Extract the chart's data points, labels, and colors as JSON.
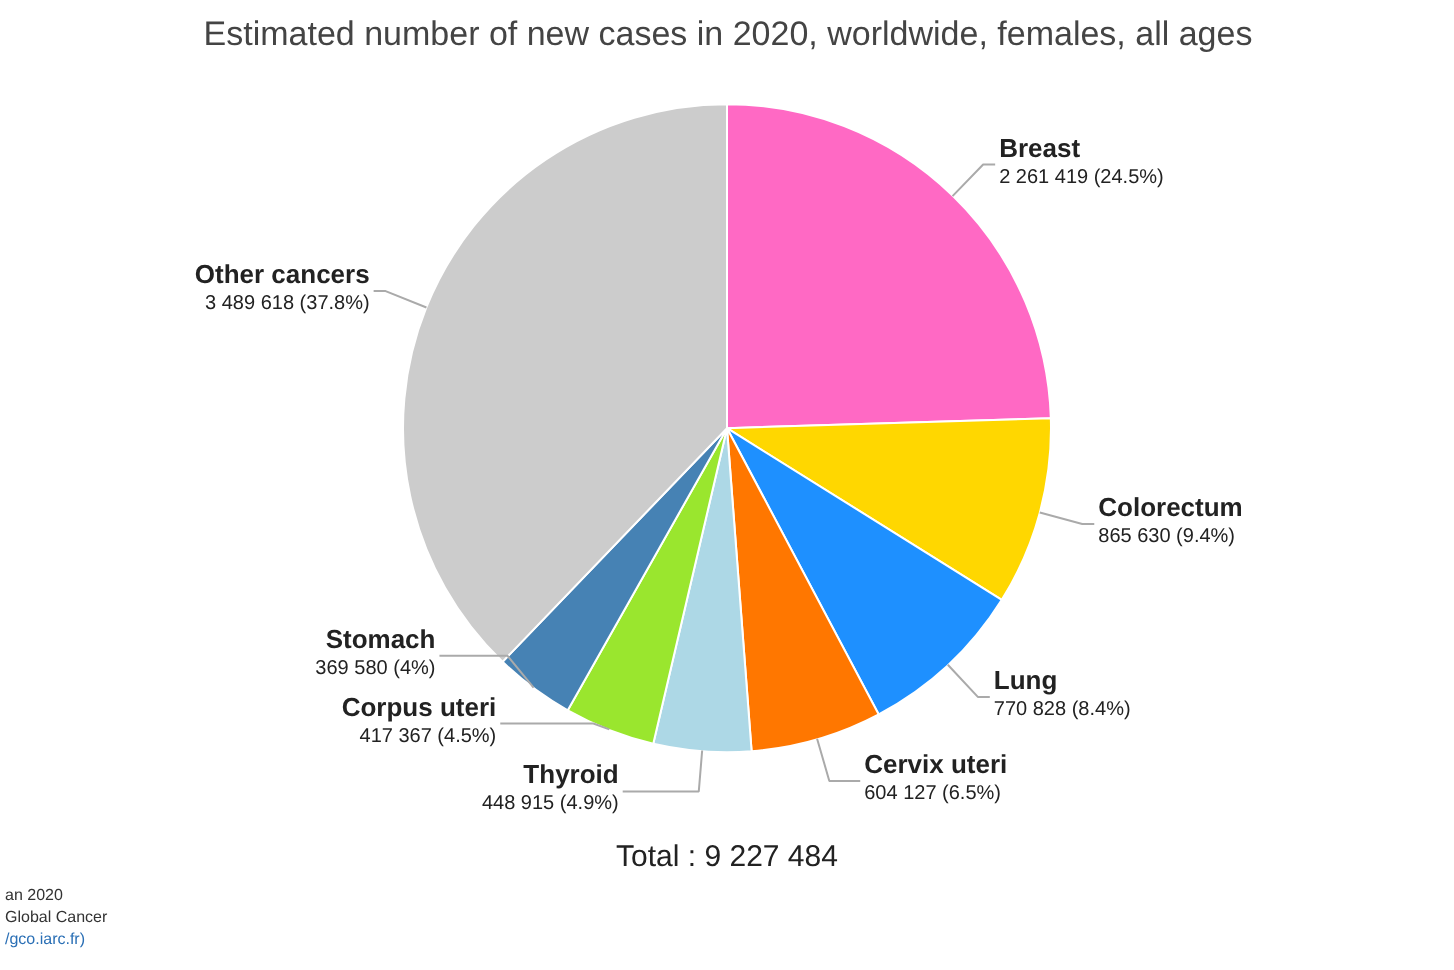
{
  "chart_data": {
    "type": "pie",
    "title": "Estimated number of new cases in 2020, worldwide, females, all ages",
    "categories": [
      "Breast",
      "Colorectum",
      "Lung",
      "Cervix uteri",
      "Thyroid",
      "Corpus uteri",
      "Stomach",
      "Other cancers"
    ],
    "values": [
      2261419,
      865630,
      770828,
      604127,
      448915,
      417367,
      369580,
      3489618
    ],
    "colors": [
      "#ff69c4",
      "#ffd700",
      "#1e90ff",
      "#ff7700",
      "#add8e6",
      "#9ae62e",
      "#4682b4",
      "#cccccc"
    ],
    "value_labels": [
      "2 261 419 (24.5%)",
      "865 630 (9.4%)",
      "770 828 (8.4%)",
      "604 127 (6.5%)",
      "448 915 (4.9%)",
      "417 367 (4.5%)",
      "369 580 (4%)",
      "3 489 618 (37.8%)"
    ],
    "annotations": [
      "Total : 9 227 484",
      "an 2020",
      "Global Cancer",
      "/gco.iarc.fr)"
    ]
  }
}
